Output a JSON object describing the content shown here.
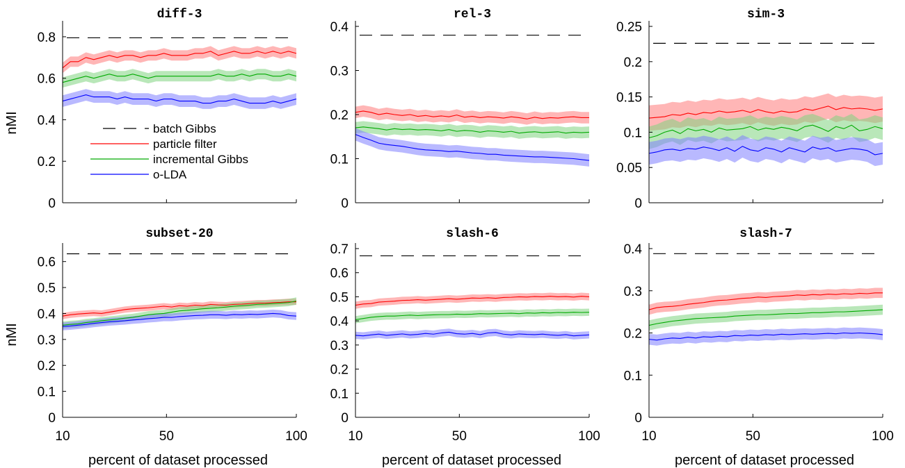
{
  "figure": {
    "ylabel": "nMI",
    "xlabel": "percent of dataset processed"
  },
  "legend": [
    {
      "label": "batch Gibbs",
      "color": "#000000",
      "dashed": true
    },
    {
      "label": "particle filter",
      "color": "#ff0000",
      "dashed": false
    },
    {
      "label": "incremental Gibbs",
      "color": "#00aa00",
      "dashed": false
    },
    {
      "label": "o-LDA",
      "color": "#0000ff",
      "dashed": false
    }
  ],
  "chart_data": [
    {
      "type": "line",
      "title": "diff-3",
      "x": [
        10,
        13,
        16,
        19,
        22,
        25,
        28,
        31,
        34,
        37,
        40,
        43,
        46,
        49,
        52,
        55,
        58,
        61,
        64,
        67,
        70,
        73,
        76,
        79,
        82,
        85,
        88,
        91,
        94,
        97,
        100
      ],
      "xlim": [
        10,
        100
      ],
      "xticks": [
        10,
        50,
        100
      ],
      "ylim": [
        0,
        0.85
      ],
      "yticks": [
        0,
        0.2,
        0.4,
        0.6,
        0.8
      ],
      "batch_gibbs": 0.795,
      "series": [
        {
          "name": "particle filter",
          "values": [
            0.65,
            0.68,
            0.68,
            0.7,
            0.69,
            0.7,
            0.71,
            0.7,
            0.71,
            0.71,
            0.7,
            0.71,
            0.71,
            0.72,
            0.71,
            0.71,
            0.71,
            0.72,
            0.72,
            0.73,
            0.71,
            0.72,
            0.73,
            0.72,
            0.72,
            0.73,
            0.72,
            0.73,
            0.72,
            0.73,
            0.72
          ],
          "band": 0.025
        },
        {
          "name": "incremental Gibbs",
          "values": [
            0.58,
            0.59,
            0.6,
            0.61,
            0.6,
            0.61,
            0.62,
            0.61,
            0.61,
            0.62,
            0.61,
            0.6,
            0.61,
            0.61,
            0.61,
            0.61,
            0.61,
            0.61,
            0.61,
            0.61,
            0.62,
            0.61,
            0.61,
            0.62,
            0.61,
            0.62,
            0.62,
            0.61,
            0.61,
            0.62,
            0.61
          ],
          "band": 0.025
        },
        {
          "name": "o-LDA",
          "values": [
            0.49,
            0.5,
            0.51,
            0.52,
            0.51,
            0.51,
            0.51,
            0.5,
            0.51,
            0.5,
            0.5,
            0.5,
            0.49,
            0.5,
            0.5,
            0.49,
            0.49,
            0.49,
            0.48,
            0.48,
            0.49,
            0.49,
            0.5,
            0.49,
            0.48,
            0.48,
            0.48,
            0.49,
            0.48,
            0.49,
            0.5
          ],
          "band": 0.028
        }
      ]
    },
    {
      "type": "line",
      "title": "rel-3",
      "x": [
        10,
        13,
        16,
        19,
        22,
        25,
        28,
        31,
        34,
        37,
        40,
        43,
        46,
        49,
        52,
        55,
        58,
        61,
        64,
        67,
        70,
        73,
        76,
        79,
        82,
        85,
        88,
        91,
        94,
        97,
        100
      ],
      "xlim": [
        10,
        100
      ],
      "xticks": [
        10,
        50,
        100
      ],
      "ylim": [
        0,
        0.4
      ],
      "yticks": [
        0,
        0.1,
        0.2,
        0.3,
        0.4
      ],
      "batch_gibbs": 0.38,
      "series": [
        {
          "name": "particle filter",
          "values": [
            0.205,
            0.208,
            0.205,
            0.2,
            0.203,
            0.2,
            0.198,
            0.2,
            0.196,
            0.198,
            0.195,
            0.197,
            0.195,
            0.199,
            0.194,
            0.196,
            0.193,
            0.195,
            0.194,
            0.192,
            0.195,
            0.193,
            0.19,
            0.194,
            0.191,
            0.193,
            0.192,
            0.194,
            0.195,
            0.193,
            0.193
          ],
          "band": 0.013
        },
        {
          "name": "incremental Gibbs",
          "values": [
            0.17,
            0.172,
            0.17,
            0.168,
            0.165,
            0.168,
            0.166,
            0.167,
            0.165,
            0.166,
            0.165,
            0.163,
            0.166,
            0.162,
            0.164,
            0.163,
            0.16,
            0.163,
            0.162,
            0.16,
            0.162,
            0.158,
            0.16,
            0.161,
            0.159,
            0.16,
            0.161,
            0.158,
            0.16,
            0.159,
            0.16
          ],
          "band": 0.013
        },
        {
          "name": "o-LDA",
          "values": [
            0.155,
            0.148,
            0.142,
            0.135,
            0.132,
            0.13,
            0.128,
            0.125,
            0.122,
            0.12,
            0.119,
            0.118,
            0.116,
            0.117,
            0.115,
            0.113,
            0.112,
            0.11,
            0.11,
            0.108,
            0.107,
            0.106,
            0.105,
            0.104,
            0.104,
            0.103,
            0.102,
            0.101,
            0.1,
            0.098,
            0.096
          ],
          "band": 0.014
        }
      ]
    },
    {
      "type": "line",
      "title": "sim-3",
      "x": [
        10,
        13,
        16,
        19,
        22,
        25,
        28,
        31,
        34,
        37,
        40,
        43,
        46,
        49,
        52,
        55,
        58,
        61,
        64,
        67,
        70,
        73,
        76,
        79,
        82,
        85,
        88,
        91,
        94,
        97,
        100
      ],
      "xlim": [
        10,
        100
      ],
      "xticks": [
        10,
        50,
        100
      ],
      "ylim": [
        0,
        0.25
      ],
      "yticks": [
        0,
        0.05,
        0.1,
        0.15,
        0.2,
        0.25
      ],
      "batch_gibbs": 0.226,
      "series": [
        {
          "name": "particle filter",
          "values": [
            0.12,
            0.121,
            0.122,
            0.125,
            0.124,
            0.127,
            0.125,
            0.128,
            0.127,
            0.13,
            0.128,
            0.129,
            0.131,
            0.128,
            0.132,
            0.129,
            0.127,
            0.13,
            0.128,
            0.129,
            0.133,
            0.131,
            0.134,
            0.137,
            0.132,
            0.135,
            0.133,
            0.134,
            0.133,
            0.131,
            0.133
          ],
          "band": 0.018
        },
        {
          "name": "incremental Gibbs",
          "values": [
            0.092,
            0.095,
            0.1,
            0.103,
            0.098,
            0.105,
            0.102,
            0.104,
            0.1,
            0.106,
            0.103,
            0.104,
            0.105,
            0.108,
            0.103,
            0.106,
            0.104,
            0.107,
            0.105,
            0.102,
            0.108,
            0.11,
            0.106,
            0.101,
            0.108,
            0.105,
            0.11,
            0.102,
            0.104,
            0.108,
            0.105
          ],
          "band": 0.016
        },
        {
          "name": "o-LDA",
          "values": [
            0.07,
            0.072,
            0.075,
            0.076,
            0.074,
            0.077,
            0.076,
            0.079,
            0.077,
            0.074,
            0.078,
            0.073,
            0.08,
            0.075,
            0.073,
            0.078,
            0.076,
            0.072,
            0.078,
            0.075,
            0.072,
            0.079,
            0.076,
            0.078,
            0.073,
            0.075,
            0.077,
            0.076,
            0.074,
            0.068,
            0.07
          ],
          "band": 0.016
        }
      ]
    },
    {
      "type": "line",
      "title": "subset-20",
      "x": [
        10,
        13,
        16,
        19,
        22,
        25,
        28,
        31,
        34,
        37,
        40,
        43,
        46,
        49,
        52,
        55,
        58,
        61,
        64,
        67,
        70,
        73,
        76,
        79,
        82,
        85,
        88,
        91,
        94,
        97,
        100
      ],
      "xlim": [
        10,
        100
      ],
      "xticks": [
        10,
        50,
        100
      ],
      "ylim": [
        0,
        0.65
      ],
      "yticks": [
        0,
        0.1,
        0.2,
        0.3,
        0.4,
        0.5,
        0.6
      ],
      "batch_gibbs": 0.63,
      "series": [
        {
          "name": "particle filter",
          "values": [
            0.39,
            0.395,
            0.398,
            0.4,
            0.402,
            0.4,
            0.405,
            0.41,
            0.415,
            0.418,
            0.42,
            0.422,
            0.425,
            0.428,
            0.425,
            0.43,
            0.428,
            0.432,
            0.43,
            0.435,
            0.433,
            0.432,
            0.435,
            0.436,
            0.438,
            0.44,
            0.44,
            0.442,
            0.443,
            0.445,
            0.445
          ],
          "band": 0.012
        },
        {
          "name": "incremental Gibbs",
          "values": [
            0.355,
            0.358,
            0.36,
            0.365,
            0.368,
            0.372,
            0.375,
            0.378,
            0.382,
            0.385,
            0.39,
            0.395,
            0.398,
            0.4,
            0.405,
            0.41,
            0.412,
            0.415,
            0.418,
            0.42,
            0.422,
            0.425,
            0.428,
            0.43,
            0.432,
            0.435,
            0.436,
            0.438,
            0.44,
            0.442,
            0.448
          ],
          "band": 0.014
        },
        {
          "name": "o-LDA",
          "values": [
            0.35,
            0.352,
            0.355,
            0.358,
            0.362,
            0.365,
            0.368,
            0.37,
            0.372,
            0.375,
            0.377,
            0.38,
            0.382,
            0.385,
            0.385,
            0.388,
            0.39,
            0.392,
            0.393,
            0.395,
            0.395,
            0.393,
            0.396,
            0.395,
            0.397,
            0.396,
            0.398,
            0.4,
            0.398,
            0.392,
            0.39
          ],
          "band": 0.015
        }
      ]
    },
    {
      "type": "line",
      "title": "slash-6",
      "x": [
        10,
        13,
        16,
        19,
        22,
        25,
        28,
        31,
        34,
        37,
        40,
        43,
        46,
        49,
        52,
        55,
        58,
        61,
        64,
        67,
        70,
        73,
        76,
        79,
        82,
        85,
        88,
        91,
        94,
        97,
        100
      ],
      "xlim": [
        10,
        100
      ],
      "xticks": [
        10,
        50,
        100
      ],
      "ylim": [
        0,
        0.7
      ],
      "yticks": [
        0,
        0.1,
        0.2,
        0.3,
        0.4,
        0.5,
        0.6,
        0.7
      ],
      "batch_gibbs": 0.67,
      "series": [
        {
          "name": "particle filter",
          "values": [
            0.465,
            0.47,
            0.472,
            0.478,
            0.48,
            0.482,
            0.485,
            0.486,
            0.488,
            0.486,
            0.488,
            0.49,
            0.492,
            0.49,
            0.492,
            0.495,
            0.494,
            0.496,
            0.494,
            0.497,
            0.498,
            0.5,
            0.499,
            0.501,
            0.5,
            0.502,
            0.5,
            0.501,
            0.499,
            0.502,
            0.5
          ],
          "band": 0.015
        },
        {
          "name": "incremental Gibbs",
          "values": [
            0.405,
            0.41,
            0.415,
            0.418,
            0.42,
            0.42,
            0.422,
            0.424,
            0.422,
            0.424,
            0.425,
            0.426,
            0.426,
            0.428,
            0.427,
            0.428,
            0.43,
            0.429,
            0.43,
            0.431,
            0.432,
            0.43,
            0.433,
            0.432,
            0.434,
            0.433,
            0.435,
            0.434,
            0.436,
            0.435,
            0.436
          ],
          "band": 0.015
        },
        {
          "name": "o-LDA",
          "values": [
            0.34,
            0.338,
            0.342,
            0.345,
            0.34,
            0.343,
            0.346,
            0.342,
            0.344,
            0.348,
            0.345,
            0.35,
            0.353,
            0.347,
            0.345,
            0.348,
            0.343,
            0.35,
            0.352,
            0.345,
            0.342,
            0.346,
            0.344,
            0.343,
            0.345,
            0.342,
            0.34,
            0.343,
            0.338,
            0.34,
            0.342
          ],
          "band": 0.015
        }
      ]
    },
    {
      "type": "line",
      "title": "slash-7",
      "x": [
        10,
        13,
        16,
        19,
        22,
        25,
        28,
        31,
        34,
        37,
        40,
        43,
        46,
        49,
        52,
        55,
        58,
        61,
        64,
        67,
        70,
        73,
        76,
        79,
        82,
        85,
        88,
        91,
        94,
        97,
        100
      ],
      "xlim": [
        10,
        100
      ],
      "xticks": [
        10,
        50,
        100
      ],
      "ylim": [
        0,
        0.4
      ],
      "yticks": [
        0,
        0.1,
        0.2,
        0.3,
        0.4
      ],
      "batch_gibbs": 0.388,
      "series": [
        {
          "name": "particle filter",
          "values": [
            0.255,
            0.26,
            0.262,
            0.263,
            0.265,
            0.268,
            0.27,
            0.272,
            0.275,
            0.277,
            0.278,
            0.28,
            0.282,
            0.283,
            0.285,
            0.284,
            0.286,
            0.287,
            0.288,
            0.29,
            0.289,
            0.291,
            0.29,
            0.292,
            0.291,
            0.293,
            0.292,
            0.294,
            0.293,
            0.295,
            0.295
          ],
          "band": 0.012
        },
        {
          "name": "incremental Gibbs",
          "values": [
            0.218,
            0.222,
            0.225,
            0.228,
            0.23,
            0.232,
            0.234,
            0.235,
            0.236,
            0.237,
            0.238,
            0.24,
            0.241,
            0.242,
            0.243,
            0.243,
            0.244,
            0.245,
            0.246,
            0.246,
            0.247,
            0.248,
            0.248,
            0.249,
            0.25,
            0.25,
            0.251,
            0.252,
            0.253,
            0.254,
            0.255
          ],
          "band": 0.012
        },
        {
          "name": "o-LDA",
          "values": [
            0.185,
            0.183,
            0.186,
            0.188,
            0.187,
            0.19,
            0.188,
            0.191,
            0.19,
            0.192,
            0.191,
            0.194,
            0.193,
            0.195,
            0.194,
            0.196,
            0.195,
            0.197,
            0.196,
            0.197,
            0.198,
            0.197,
            0.198,
            0.199,
            0.198,
            0.2,
            0.199,
            0.2,
            0.199,
            0.198,
            0.196
          ],
          "band": 0.013
        }
      ]
    }
  ]
}
